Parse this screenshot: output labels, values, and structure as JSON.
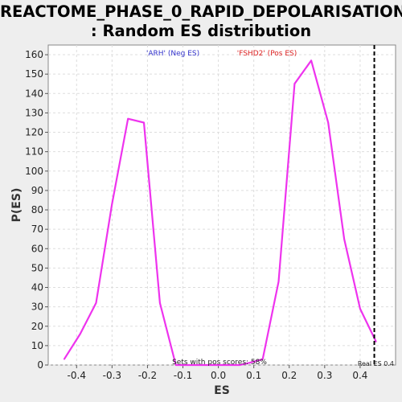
{
  "title_line1": "REACTOME_PHASE_0_RAPID_DEPOLARISATION",
  "title_line2": ": Random ES distribution",
  "colors": {
    "background": "#eeeeee",
    "plot_background": "#ffffff",
    "curve": "#ee33ee",
    "neg_label": "#3333cc",
    "pos_label": "#dd2222",
    "grid": "#dddddd"
  },
  "chart_data": {
    "type": "line",
    "title": "REACTOME_PHASE_0_RAPID_DEPOLARISATION : Random ES distribution",
    "xlabel": "ES",
    "ylabel": "P(ES)",
    "xlim": [
      -0.48,
      0.5
    ],
    "ylim": [
      0,
      165
    ],
    "x_ticks": [
      -0.4,
      -0.3,
      -0.2,
      -0.1,
      0.0,
      0.1,
      0.2,
      0.3,
      0.4
    ],
    "y_ticks": [
      0,
      10,
      20,
      30,
      40,
      50,
      60,
      70,
      80,
      90,
      100,
      110,
      120,
      130,
      140,
      150,
      160
    ],
    "grid": true,
    "series": [
      {
        "x": [
          -0.435,
          -0.39,
          -0.345,
          -0.3,
          -0.255,
          -0.21,
          -0.165,
          -0.12,
          -0.075,
          -0.03,
          0.015,
          0.06,
          0.085,
          0.125,
          0.17,
          0.215,
          0.262,
          0.31,
          0.355,
          0.4,
          0.445
        ],
        "y": [
          3,
          16,
          32,
          83,
          127,
          125,
          32,
          0,
          0,
          0,
          0,
          0,
          1,
          3,
          43,
          145,
          157,
          125,
          65,
          29,
          12
        ]
      }
    ],
    "real_es": 0.44,
    "annotations": {
      "neg_label": "'ARH' (Neg ES)",
      "pos_label": "'FSHD2' (Pos ES)",
      "pos_scores": "Sets with pos scores: 58%",
      "real_es_label": "Real ES 0.4"
    }
  }
}
